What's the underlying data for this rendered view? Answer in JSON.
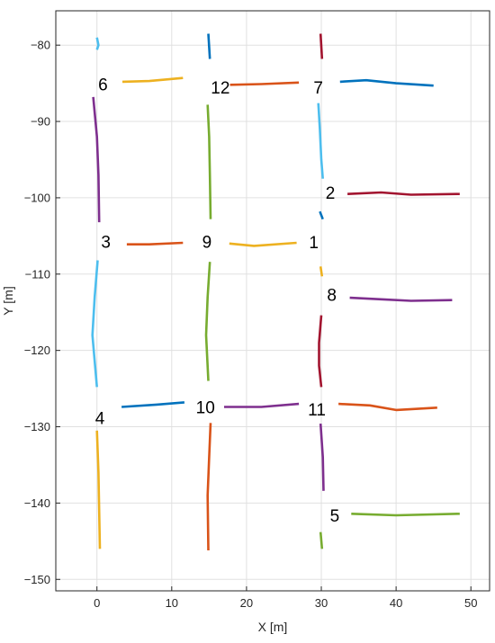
{
  "chart_data": {
    "type": "line",
    "title": "",
    "xlabel": "X [m]",
    "ylabel": "Y [m]",
    "xlim": [
      -5.5,
      52.5
    ],
    "ylim": [
      -151.5,
      -75.5
    ],
    "xticks": [
      0,
      10,
      20,
      30,
      40,
      50
    ],
    "yticks": [
      -150,
      -140,
      -130,
      -120,
      -110,
      -100,
      -90,
      -80
    ],
    "xtick_labels": [
      "0",
      "10",
      "20",
      "30",
      "40",
      "50"
    ],
    "ytick_labels": [
      "−150",
      "−140",
      "−130",
      "−120",
      "−110",
      "−100",
      "−90",
      "−80"
    ],
    "grid": true,
    "colors": {
      "blue": "#0072BD",
      "orange": "#D95319",
      "yellow": "#EDB120",
      "purple": "#7E2F8E",
      "green": "#77AC30",
      "cyan": "#4DBEEE",
      "red": "#A2142F",
      "grid": "#e0e0e0",
      "axis": "#262626"
    },
    "series": [
      {
        "color": "cyan",
        "points": [
          [
            0.0,
            -79.0
          ],
          [
            0.2,
            -80.0
          ],
          [
            0.0,
            -80.6
          ]
        ]
      },
      {
        "color": "blue",
        "points": [
          [
            14.9,
            -78.5
          ],
          [
            15.1,
            -81.8
          ]
        ]
      },
      {
        "color": "red",
        "points": [
          [
            29.9,
            -78.5
          ],
          [
            30.1,
            -81.8
          ]
        ]
      },
      {
        "color": "yellow",
        "points": [
          [
            3.4,
            -84.8
          ],
          [
            7.0,
            -84.7
          ],
          [
            11.5,
            -84.3
          ]
        ]
      },
      {
        "color": "orange",
        "points": [
          [
            17.8,
            -85.2
          ],
          [
            22.0,
            -85.1
          ],
          [
            27.0,
            -84.9
          ]
        ]
      },
      {
        "color": "blue",
        "points": [
          [
            32.5,
            -84.8
          ],
          [
            36.0,
            -84.6
          ],
          [
            40.0,
            -85.0
          ],
          [
            45.0,
            -85.3
          ]
        ]
      },
      {
        "color": "purple",
        "points": [
          [
            -0.5,
            -86.8
          ],
          [
            0.0,
            -92.0
          ],
          [
            0.2,
            -97.0
          ],
          [
            0.3,
            -103.2
          ]
        ]
      },
      {
        "color": "green",
        "points": [
          [
            14.8,
            -87.8
          ],
          [
            15.0,
            -92.0
          ],
          [
            15.1,
            -97.0
          ],
          [
            15.2,
            -102.8
          ]
        ]
      },
      {
        "color": "cyan",
        "points": [
          [
            29.6,
            -87.6
          ],
          [
            29.8,
            -91.0
          ],
          [
            30.0,
            -95.0
          ],
          [
            30.2,
            -97.5
          ]
        ]
      },
      {
        "color": "red",
        "points": [
          [
            33.5,
            -99.5
          ],
          [
            38.0,
            -99.3
          ],
          [
            42.0,
            -99.6
          ],
          [
            48.5,
            -99.5
          ]
        ]
      },
      {
        "color": "blue",
        "points": [
          [
            29.8,
            -101.8
          ],
          [
            30.2,
            -102.8
          ]
        ]
      },
      {
        "color": "orange",
        "points": [
          [
            4.0,
            -106.1
          ],
          [
            7.0,
            -106.1
          ],
          [
            11.5,
            -105.9
          ]
        ]
      },
      {
        "color": "yellow",
        "points": [
          [
            17.7,
            -106.0
          ],
          [
            21.0,
            -106.3
          ],
          [
            26.7,
            -105.9
          ]
        ]
      },
      {
        "color": "yellow",
        "points": [
          [
            29.9,
            -109.0
          ],
          [
            30.1,
            -110.3
          ]
        ]
      },
      {
        "color": "cyan",
        "points": [
          [
            0.1,
            -108.2
          ],
          [
            -0.3,
            -113.0
          ],
          [
            -0.6,
            -118.0
          ],
          [
            0.0,
            -124.8
          ]
        ]
      },
      {
        "color": "green",
        "points": [
          [
            15.1,
            -108.4
          ],
          [
            14.8,
            -113.0
          ],
          [
            14.6,
            -118.0
          ],
          [
            14.9,
            -124.0
          ]
        ]
      },
      {
        "color": "purple",
        "points": [
          [
            33.8,
            -113.1
          ],
          [
            38.0,
            -113.3
          ],
          [
            42.0,
            -113.5
          ],
          [
            47.5,
            -113.4
          ]
        ]
      },
      {
        "color": "red",
        "points": [
          [
            30.0,
            -115.4
          ],
          [
            29.7,
            -119.0
          ],
          [
            29.7,
            -122.0
          ],
          [
            30.0,
            -124.8
          ]
        ]
      },
      {
        "color": "blue",
        "points": [
          [
            3.3,
            -127.4
          ],
          [
            8.0,
            -127.1
          ],
          [
            11.7,
            -126.8
          ]
        ]
      },
      {
        "color": "purple",
        "points": [
          [
            17.0,
            -127.4
          ],
          [
            22.0,
            -127.4
          ],
          [
            27.0,
            -127.0
          ]
        ]
      },
      {
        "color": "orange",
        "points": [
          [
            32.3,
            -127.0
          ],
          [
            36.5,
            -127.2
          ],
          [
            40.0,
            -127.8
          ],
          [
            45.5,
            -127.5
          ]
        ]
      },
      {
        "color": "yellow",
        "points": [
          [
            0.0,
            -130.5
          ],
          [
            0.2,
            -136.0
          ],
          [
            0.3,
            -141.0
          ],
          [
            0.4,
            -146.0
          ]
        ]
      },
      {
        "color": "orange",
        "points": [
          [
            15.2,
            -129.5
          ],
          [
            15.0,
            -134.0
          ],
          [
            14.8,
            -139.0
          ],
          [
            14.9,
            -146.2
          ]
        ]
      },
      {
        "color": "purple",
        "points": [
          [
            29.9,
            -129.6
          ],
          [
            30.2,
            -134.0
          ],
          [
            30.3,
            -138.4
          ]
        ]
      },
      {
        "color": "green",
        "points": [
          [
            34.0,
            -141.4
          ],
          [
            40.0,
            -141.6
          ],
          [
            48.5,
            -141.4
          ]
        ]
      },
      {
        "color": "green",
        "points": [
          [
            29.9,
            -143.8
          ],
          [
            30.1,
            -146.0
          ]
        ]
      }
    ],
    "annotations": [
      {
        "text": "6",
        "x": 0.8,
        "y": -85.1
      },
      {
        "text": "12",
        "x": 16.5,
        "y": -85.5
      },
      {
        "text": "7",
        "x": 29.6,
        "y": -85.5
      },
      {
        "text": "2",
        "x": 31.2,
        "y": -99.3
      },
      {
        "text": "3",
        "x": 1.2,
        "y": -105.7
      },
      {
        "text": "9",
        "x": 14.7,
        "y": -105.7
      },
      {
        "text": "1",
        "x": 29.0,
        "y": -105.8
      },
      {
        "text": "8",
        "x": 31.4,
        "y": -112.7
      },
      {
        "text": "4",
        "x": 0.4,
        "y": -128.8
      },
      {
        "text": "10",
        "x": 14.5,
        "y": -127.4
      },
      {
        "text": "11",
        "x": 29.4,
        "y": -127.7
      },
      {
        "text": "5",
        "x": 31.8,
        "y": -141.6
      }
    ]
  }
}
